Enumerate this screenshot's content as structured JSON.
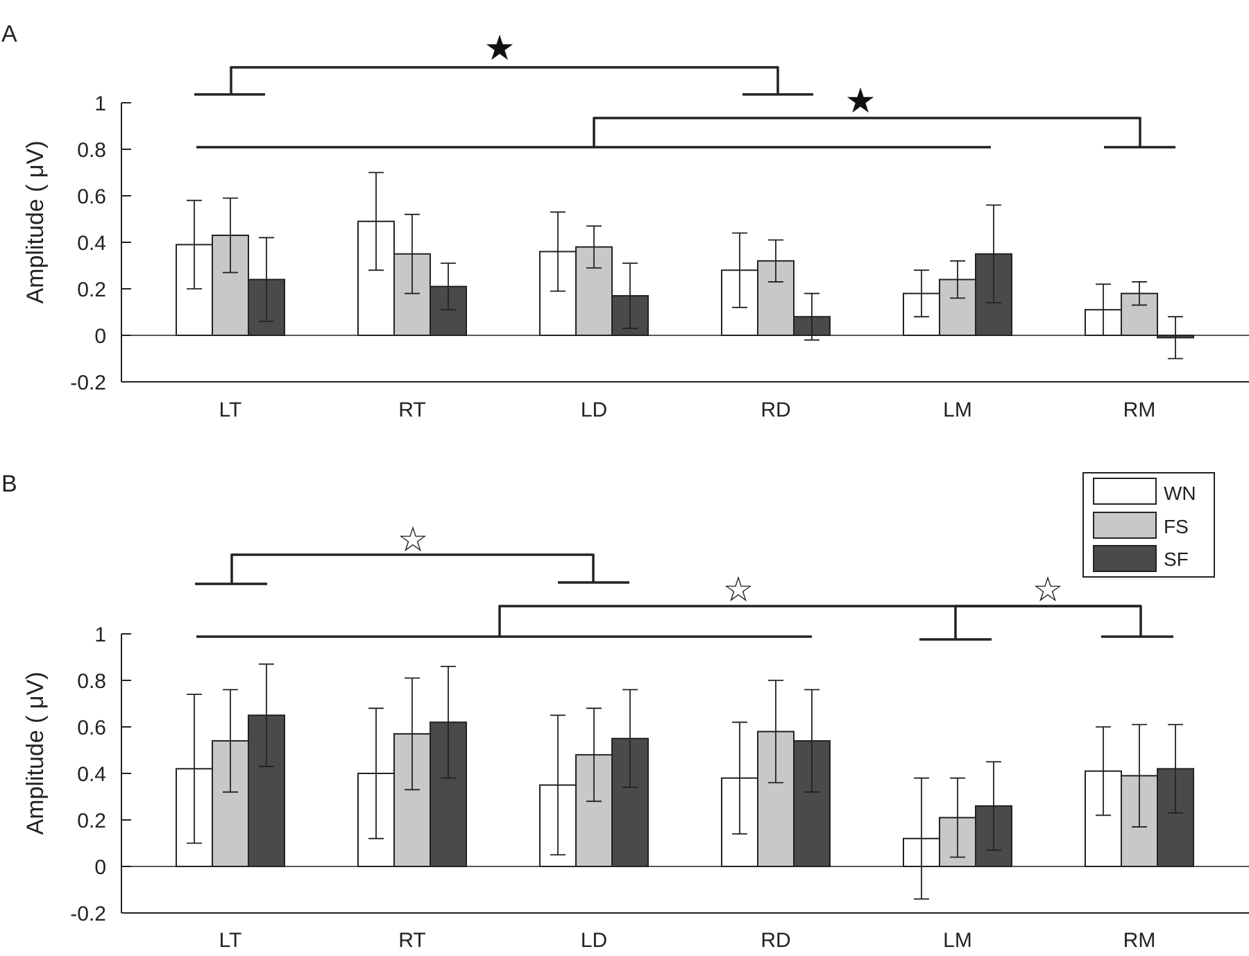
{
  "legend": [
    {
      "label": "WN",
      "color": "#ffffff"
    },
    {
      "label": "FS",
      "color": "#c8c8c8"
    },
    {
      "label": "SF",
      "color": "#4a4a4a"
    }
  ],
  "colors": {
    "axis": "#222222",
    "bar_stroke": "#222222"
  },
  "chart_data": [
    {
      "panel": "A",
      "type": "bar",
      "ylabel": "Amplitude ( μV)",
      "ylim": [
        -0.2,
        1.0
      ],
      "yticks": [
        "1",
        "0.8",
        "0.6",
        "0.4",
        "0.2",
        "0",
        "-0.2"
      ],
      "categories": [
        "LT",
        "RT",
        "LD",
        "RD",
        "LM",
        "RM"
      ],
      "series": [
        {
          "name": "WN",
          "values": [
            0.39,
            0.49,
            0.36,
            0.28,
            0.18,
            0.11
          ],
          "errors": [
            0.19,
            0.21,
            0.17,
            0.16,
            0.1,
            0.11
          ]
        },
        {
          "name": "FS",
          "values": [
            0.43,
            0.35,
            0.38,
            0.32,
            0.24,
            0.18
          ],
          "errors": [
            0.16,
            0.17,
            0.09,
            0.09,
            0.08,
            0.05
          ]
        },
        {
          "name": "SF",
          "values": [
            0.24,
            0.21,
            0.17,
            0.08,
            0.35,
            -0.01
          ],
          "errors": [
            0.18,
            0.1,
            0.14,
            0.1,
            0.21,
            0.09
          ]
        }
      ],
      "significance": [
        {
          "marker": "★",
          "from": "LT",
          "to": "RD"
        },
        {
          "marker": "★",
          "from": "LT–LM",
          "to": "RM"
        }
      ]
    },
    {
      "panel": "B",
      "type": "bar",
      "ylabel": "Amplitude ( μV)",
      "ylim": [
        -0.2,
        1.0
      ],
      "yticks": [
        "1",
        "0.8",
        "0.6",
        "0.4",
        "0.2",
        "0",
        "-0.2"
      ],
      "categories": [
        "LT",
        "RT",
        "LD",
        "RD",
        "LM",
        "RM"
      ],
      "series": [
        {
          "name": "WN",
          "values": [
            0.42,
            0.4,
            0.35,
            0.38,
            0.12,
            0.41
          ],
          "errors": [
            0.32,
            0.28,
            0.3,
            0.24,
            0.26,
            0.19
          ]
        },
        {
          "name": "FS",
          "values": [
            0.54,
            0.57,
            0.48,
            0.58,
            0.21,
            0.39
          ],
          "errors": [
            0.22,
            0.24,
            0.2,
            0.22,
            0.17,
            0.22
          ]
        },
        {
          "name": "SF",
          "values": [
            0.65,
            0.62,
            0.55,
            0.54,
            0.26,
            0.42
          ],
          "errors": [
            0.22,
            0.24,
            0.21,
            0.22,
            0.19,
            0.19
          ]
        }
      ],
      "significance": [
        {
          "marker": "☆",
          "from": "LT",
          "to": "LD"
        },
        {
          "marker": "☆",
          "from": "LT–RD",
          "to": "LM"
        },
        {
          "marker": "☆",
          "from": "LM",
          "to": "RM"
        }
      ]
    }
  ]
}
